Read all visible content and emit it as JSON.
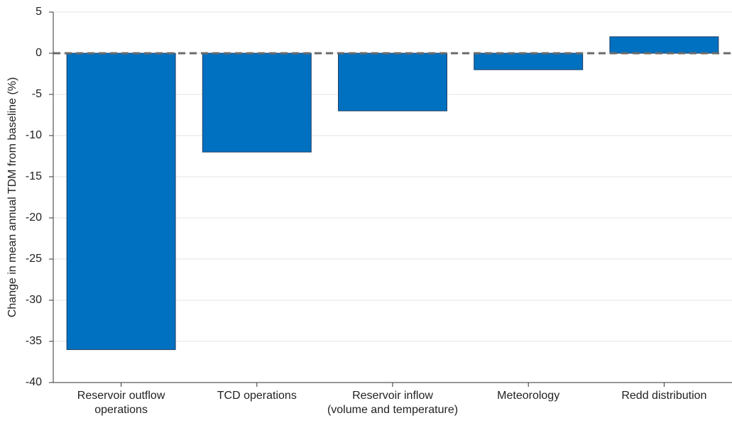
{
  "chart_data": {
    "type": "bar",
    "ylabel": "Change in mean annual TDM from baseline (%)",
    "categories": [
      "Reservoir outflow\noperations",
      "TCD operations",
      "Reservoir inflow\n(volume and temperature)",
      "Meteorology",
      "Redd distribution"
    ],
    "values": [
      -36,
      -12,
      -7,
      -2,
      2
    ],
    "color": "#0070c0",
    "ylim": [
      -40,
      5
    ],
    "yticks": [
      5,
      0,
      -5,
      -10,
      -15,
      -20,
      -25,
      -30,
      -35,
      -40
    ],
    "grid": true,
    "hline": 0
  }
}
